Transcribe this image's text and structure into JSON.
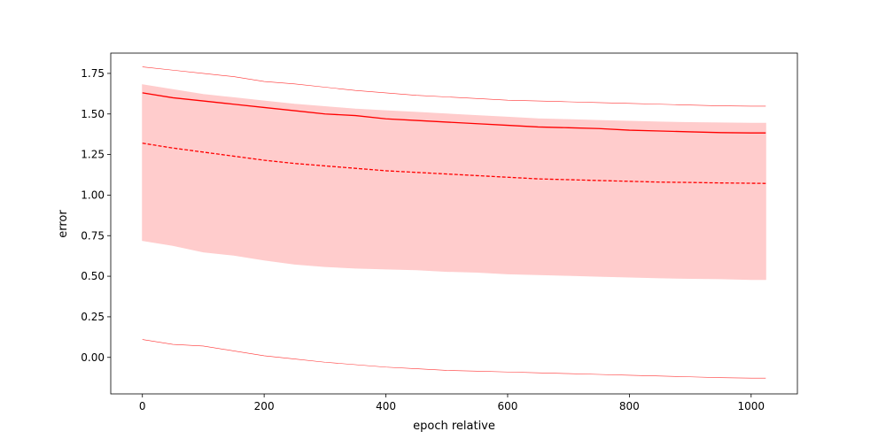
{
  "chart_data": {
    "type": "line",
    "title": "",
    "xlabel": "epoch relative",
    "ylabel": "error",
    "xlim": [
      -52,
      1076
    ],
    "ylim": [
      -0.225,
      1.875
    ],
    "xticks": [
      0,
      200,
      400,
      600,
      800,
      1000
    ],
    "yticks": [
      0.0,
      0.25,
      0.5,
      0.75,
      1.0,
      1.25,
      1.5,
      1.75
    ],
    "xtick_labels": [
      "0",
      "200",
      "400",
      "600",
      "800",
      "1000"
    ],
    "ytick_labels": [
      "0.00",
      "0.25",
      "0.50",
      "0.75",
      "1.00",
      "1.25",
      "1.50",
      "1.75"
    ],
    "grid": false,
    "legend": "none",
    "x": [
      0,
      50,
      100,
      150,
      200,
      250,
      300,
      350,
      400,
      450,
      500,
      550,
      600,
      650,
      700,
      750,
      800,
      850,
      900,
      950,
      1000,
      1024
    ],
    "series": [
      {
        "role": "mean",
        "style": "solid",
        "color": "#ff0000",
        "values": [
          1.63,
          1.6,
          1.58,
          1.56,
          1.54,
          1.52,
          1.5,
          1.49,
          1.47,
          1.46,
          1.45,
          1.44,
          1.43,
          1.42,
          1.415,
          1.41,
          1.4,
          1.395,
          1.39,
          1.385,
          1.383,
          1.383
        ]
      },
      {
        "role": "median",
        "style": "dashed",
        "color": "#ff0000",
        "values": [
          1.32,
          1.29,
          1.265,
          1.24,
          1.215,
          1.195,
          1.18,
          1.165,
          1.15,
          1.14,
          1.13,
          1.12,
          1.11,
          1.1,
          1.095,
          1.09,
          1.085,
          1.08,
          1.078,
          1.075,
          1.073,
          1.072
        ]
      },
      {
        "role": "band-upper",
        "style": "fill-edge",
        "color": "#ff0000",
        "values": [
          1.68,
          1.65,
          1.62,
          1.6,
          1.58,
          1.56,
          1.545,
          1.53,
          1.52,
          1.51,
          1.5,
          1.49,
          1.48,
          1.47,
          1.465,
          1.46,
          1.455,
          1.45,
          1.447,
          1.445,
          1.443,
          1.443
        ]
      },
      {
        "role": "band-lower",
        "style": "fill-edge",
        "color": "#ff0000",
        "values": [
          0.72,
          0.69,
          0.65,
          0.63,
          0.6,
          0.575,
          0.56,
          0.55,
          0.545,
          0.54,
          0.53,
          0.525,
          0.515,
          0.51,
          0.505,
          0.5,
          0.495,
          0.49,
          0.487,
          0.485,
          0.48,
          0.48
        ]
      },
      {
        "role": "max",
        "style": "thin",
        "color": "#ff0000",
        "values": [
          1.79,
          1.77,
          1.75,
          1.73,
          1.7,
          1.685,
          1.665,
          1.645,
          1.63,
          1.615,
          1.605,
          1.595,
          1.585,
          1.58,
          1.575,
          1.57,
          1.565,
          1.56,
          1.555,
          1.55,
          1.548,
          1.548
        ]
      },
      {
        "role": "min",
        "style": "thin",
        "color": "#ff0000",
        "values": [
          0.11,
          0.08,
          0.07,
          0.04,
          0.01,
          -0.01,
          -0.03,
          -0.045,
          -0.06,
          -0.07,
          -0.08,
          -0.085,
          -0.09,
          -0.095,
          -0.1,
          -0.105,
          -0.11,
          -0.115,
          -0.12,
          -0.125,
          -0.128,
          -0.128
        ]
      }
    ],
    "band_fill_color": "#ffcccc"
  }
}
